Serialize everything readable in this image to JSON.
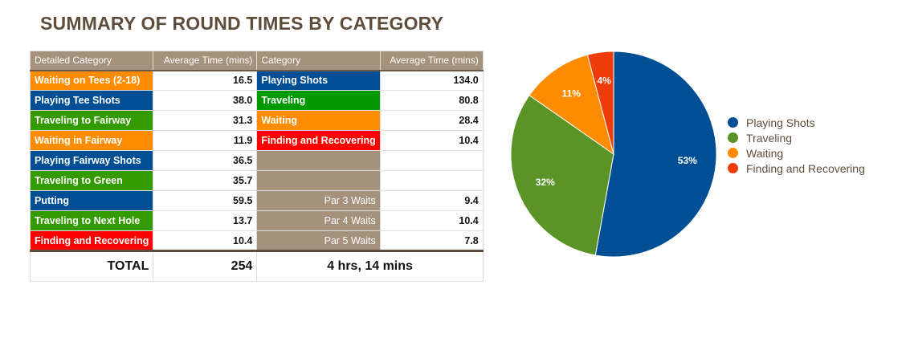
{
  "title": "SUMMARY OF ROUND TIMES BY CATEGORY",
  "colors": {
    "waiting": "#ff8c00",
    "playing": "#004f95",
    "traveling": "#339a00",
    "traveling_cat": "#009a00",
    "finding": "#ff0000",
    "tan": "#a6917c"
  },
  "table": {
    "headers": [
      "Detailed Category",
      "Average Time (mins)",
      "Category",
      "Average Time (mins)"
    ],
    "rows": [
      {
        "detail": "Waiting on Tees (2-18)",
        "dcolor": "waiting",
        "time": "16.5",
        "cat": "Playing Shots",
        "ccolor": "playing",
        "ctime": "134.0"
      },
      {
        "detail": "Playing Tee Shots",
        "dcolor": "playing",
        "time": "38.0",
        "cat": "Traveling",
        "ccolor": "traveling_cat",
        "ctime": "80.8"
      },
      {
        "detail": "Traveling to Fairway",
        "dcolor": "traveling",
        "time": "31.3",
        "cat": "Waiting",
        "ccolor": "waiting",
        "ctime": "28.4"
      },
      {
        "detail": "Waiting in Fairway",
        "dcolor": "waiting",
        "time": "11.9",
        "cat": "Finding and Recovering",
        "ccolor": "finding",
        "ctime": "10.4"
      },
      {
        "detail": "Playing Fairway Shots",
        "dcolor": "playing",
        "time": "36.5",
        "cat": "",
        "ccolor": "tan",
        "ctime": ""
      },
      {
        "detail": "Traveling to Green",
        "dcolor": "traveling",
        "time": "35.7",
        "cat": "",
        "ccolor": "tan",
        "ctime": ""
      },
      {
        "detail": "Putting",
        "dcolor": "playing",
        "time": "59.5",
        "cat": "Par 3 Waits",
        "ccolor": "tan",
        "ctime": "9.4",
        "right": true
      },
      {
        "detail": "Traveling to Next Hole",
        "dcolor": "traveling",
        "time": "13.7",
        "cat": "Par 4 Waits",
        "ccolor": "tan",
        "ctime": "10.4",
        "right": true
      },
      {
        "detail": "Finding and Recovering",
        "dcolor": "finding",
        "time": "10.4",
        "cat": "Par 5 Waits",
        "ccolor": "tan",
        "ctime": "7.8",
        "right": true
      }
    ],
    "total_label": "TOTAL",
    "total_value": "254",
    "total_time": "4 hrs,  14 mins"
  },
  "chart_data": {
    "type": "pie",
    "title": "",
    "legend_position": "right",
    "slices": [
      {
        "label": "Playing Shots",
        "value": 134.0,
        "pct_label": "53%",
        "color": "#004f95"
      },
      {
        "label": "Traveling",
        "value": 80.8,
        "pct_label": "32%",
        "color": "#5a9426"
      },
      {
        "label": "Waiting",
        "value": 28.4,
        "pct_label": "11%",
        "color": "#ff8c00"
      },
      {
        "label": "Finding and Recovering",
        "value": 10.4,
        "pct_label": "4%",
        "color": "#ee3b0a"
      }
    ]
  }
}
